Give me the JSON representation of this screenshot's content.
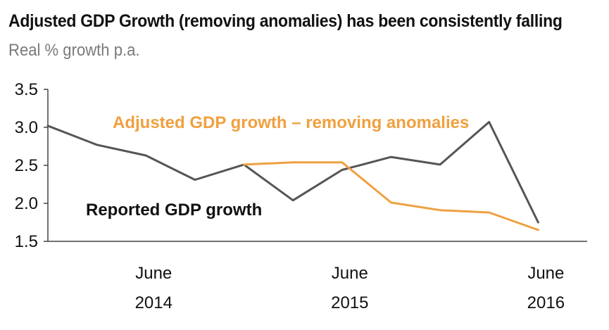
{
  "chart_data": {
    "type": "line",
    "title": "Adjusted GDP Growth (removing anomalies) has been consistently falling",
    "subtitle": "Real % growth p.a.",
    "xlabel": "",
    "ylabel": "",
    "ylim": [
      1.5,
      3.5
    ],
    "yticks": [
      "3.5",
      "3.0",
      "2.5",
      "2.0",
      "1.5"
    ],
    "x_tick_labels": [
      {
        "month": "June",
        "year": "2014",
        "index": 2
      },
      {
        "month": "June",
        "year": "2015",
        "index": 6
      },
      {
        "month": "June",
        "year": "2016",
        "index": 10
      }
    ],
    "x_count": 12,
    "series": [
      {
        "name": "Reported GDP growth",
        "color": "#555555",
        "start_index": 0,
        "values": [
          3.02,
          2.77,
          2.63,
          2.31,
          2.51,
          2.04,
          2.44,
          2.61,
          2.51,
          3.07,
          1.75
        ]
      },
      {
        "name": "Adjusted GDP growth – removing anomalies",
        "color": "#F0A040",
        "start_index": 4,
        "values": [
          2.51,
          2.54,
          2.54,
          2.01,
          1.91,
          1.88,
          1.65
        ]
      }
    ],
    "annotations": {
      "adjusted_label": "Adjusted GDP growth – removing anomalies",
      "adjusted_color": "#F0A040",
      "reported_label": "Reported GDP growth",
      "reported_color": "#111111"
    }
  }
}
